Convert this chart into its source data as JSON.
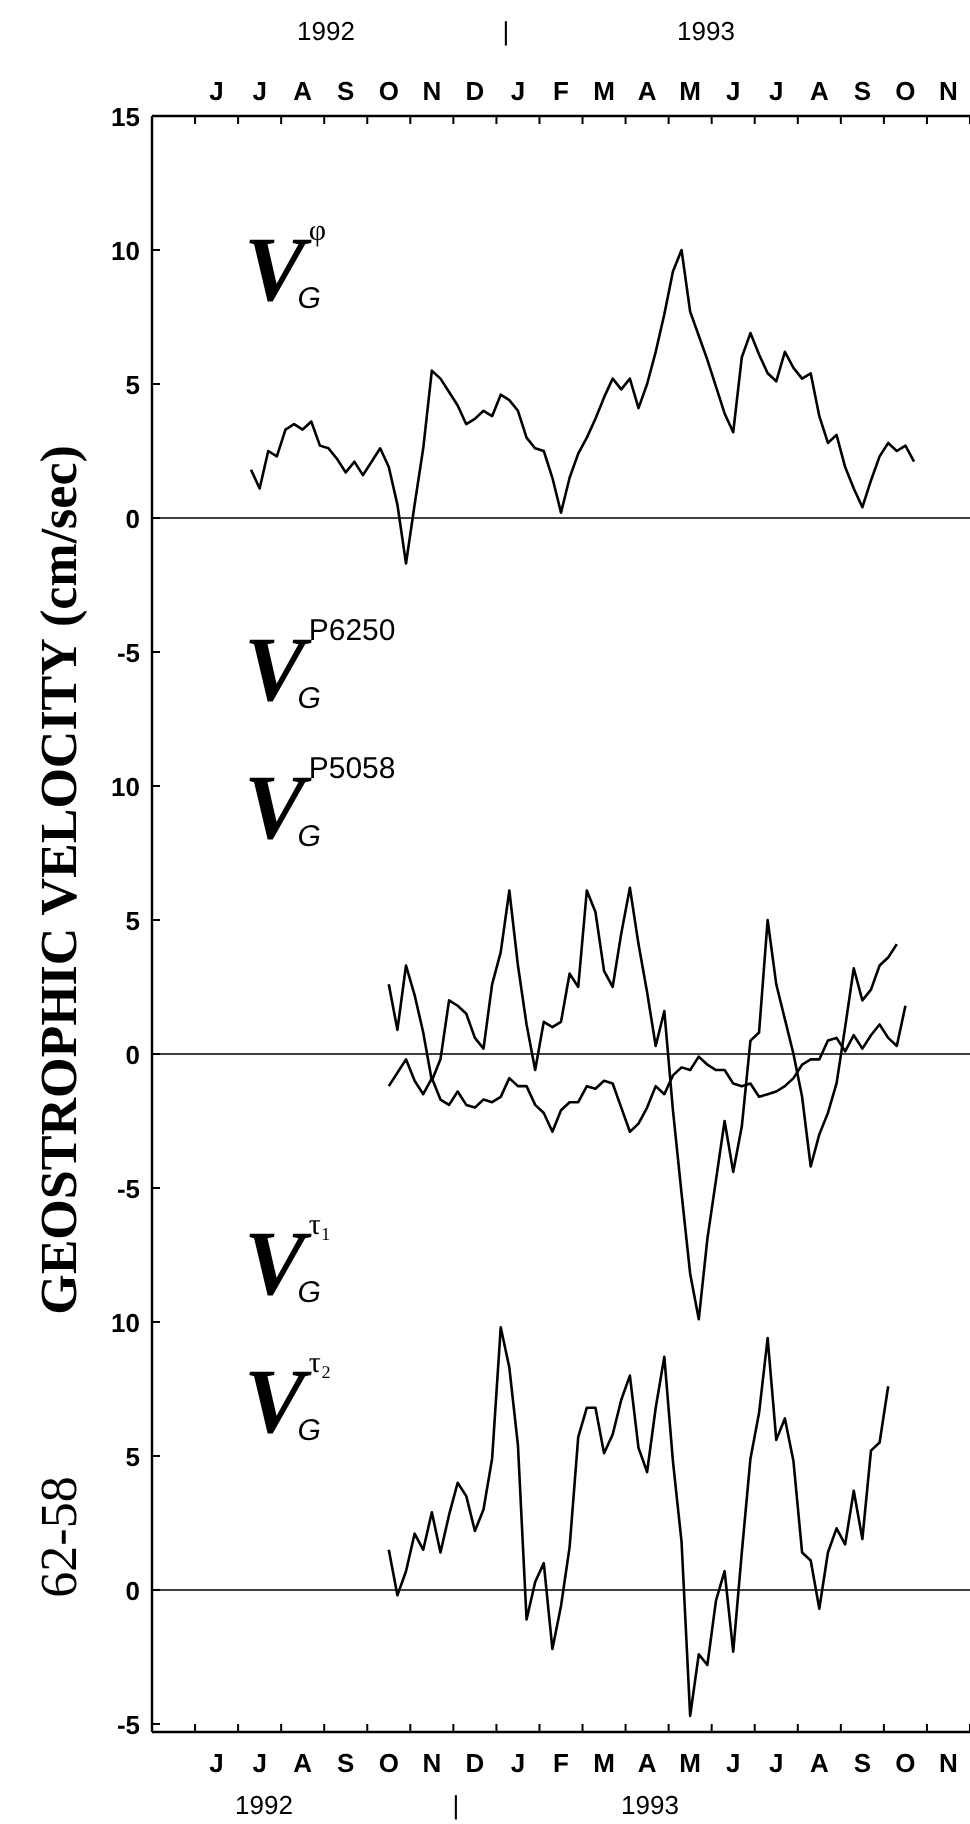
{
  "chart_data": [
    {
      "type": "line",
      "ylim": [
        -5,
        15
      ],
      "yticks": [
        15,
        10,
        5,
        0,
        -5
      ],
      "grid": false,
      "marker": "none",
      "line_style": "solid",
      "categories": [
        null,
        null,
        null,
        null,
        null,
        null,
        null,
        "J",
        null,
        null,
        null,
        null,
        "J",
        null,
        null,
        null,
        null,
        "A",
        null,
        null,
        null,
        null,
        "S",
        null,
        null,
        null,
        null,
        "O",
        null,
        null,
        null,
        null,
        "N",
        null,
        null,
        null,
        null,
        "D",
        null,
        null,
        null,
        null,
        "J",
        null,
        null,
        null,
        null,
        "F",
        null,
        null,
        null,
        null,
        "M",
        null,
        null,
        null,
        null,
        "A",
        null,
        null,
        null,
        null,
        "M",
        null,
        null,
        null,
        null,
        "J",
        null,
        null,
        null,
        null,
        "J",
        null,
        null,
        null,
        null,
        "A",
        null,
        null,
        null,
        null,
        "S",
        null,
        null,
        null,
        null,
        "O",
        null,
        null,
        null,
        null,
        "N",
        null,
        null
      ],
      "annotations": [
        "1992",
        "|",
        "1993",
        "V$_{G}$$^{φ}$"
      ],
      "ref_lines": [
        {
          "axis": "y",
          "value": 0,
          "color": "#000000"
        }
      ],
      "series": [
        {
          "color": "#000000",
          "values": [
            null,
            null,
            null,
            null,
            null,
            null,
            null,
            null,
            null,
            null,
            null,
            1.8,
            1.1,
            2.5,
            2.3,
            3.3,
            3.5,
            3.3,
            3.6,
            2.7,
            2.6,
            2.2,
            1.7,
            2.1,
            1.6,
            2.1,
            2.6,
            1.9,
            0.5,
            -1.7,
            0.5,
            2.6,
            5.5,
            5.2,
            4.7,
            4.2,
            3.5,
            3.7,
            4.0,
            3.8,
            4.6,
            4.4,
            4.0,
            3.0,
            2.6,
            2.5,
            1.5,
            0.2,
            1.5,
            2.4,
            3.0,
            3.7,
            4.5,
            5.2,
            4.8,
            5.2,
            4.1,
            5.0,
            6.2,
            7.6,
            9.2,
            10.0,
            7.7,
            6.8,
            5.9,
            4.9,
            3.9,
            3.2,
            6.0,
            6.9,
            6.1,
            5.4,
            5.1,
            6.2,
            5.6,
            5.2,
            5.4,
            3.8,
            2.8,
            3.1,
            1.9,
            1.1,
            0.4,
            1.4,
            2.3,
            2.8,
            2.5,
            2.7,
            2.1,
            null,
            null,
            null,
            null,
            null,
            null
          ]
        }
      ]
    },
    {
      "type": "line",
      "ylim": [
        -10,
        15
      ],
      "yticks": [
        10,
        5,
        0,
        -5
      ],
      "tick_labels": "y",
      "grid": false,
      "marker": "none",
      "line_style": "solid",
      "ylabel": "GEOSTROPHIC VELOCITY (cm/sec)",
      "categories": [
        null,
        null,
        null,
        null,
        null,
        null,
        null,
        null,
        null,
        null,
        null,
        null,
        null,
        null,
        null,
        null,
        null,
        null,
        null,
        null,
        null,
        null,
        null,
        null,
        null,
        null,
        null,
        null,
        null,
        null,
        null,
        null,
        null,
        null,
        null,
        null,
        null,
        null,
        null,
        null,
        null,
        null,
        null,
        null,
        null,
        null,
        null,
        null,
        null,
        null,
        null,
        null,
        null,
        null,
        null,
        null,
        null,
        null,
        null,
        null,
        null,
        null,
        null,
        null,
        null,
        null,
        null,
        null,
        null,
        null,
        null,
        null,
        null,
        null,
        null,
        null,
        null,
        null,
        null,
        null,
        null,
        null,
        null,
        null,
        null,
        null,
        null,
        null,
        null,
        null,
        null,
        null,
        null,
        null,
        null
      ],
      "annotations": [
        "V$_{G}$$^{P6250}$",
        "V$_{G}$$^{P5058}$"
      ],
      "ref_lines": [
        {
          "axis": "y",
          "value": 0,
          "color": "#000000"
        }
      ],
      "series": [
        {
          "color": "#000000",
          "values": [
            null,
            null,
            null,
            null,
            null,
            null,
            null,
            null,
            null,
            null,
            null,
            null,
            null,
            null,
            null,
            null,
            null,
            null,
            null,
            null,
            null,
            null,
            null,
            null,
            null,
            null,
            null,
            2.6,
            0.9,
            3.3,
            2.2,
            0.8,
            -1.0,
            -0.2,
            2.0,
            1.8,
            1.5,
            0.6,
            0.2,
            2.6,
            3.8,
            6.1,
            3.3,
            1.1,
            -0.6,
            1.2,
            1.0,
            1.2,
            3.0,
            2.5,
            6.1,
            5.3,
            3.1,
            2.5,
            4.5,
            6.2,
            4.1,
            2.3,
            0.3,
            1.6,
            -2.1,
            -5.2,
            -8.2,
            -9.9,
            -6.9,
            -4.7,
            -2.5,
            -4.4,
            -2.7,
            0.5,
            0.8,
            5.0,
            2.6,
            1.3,
            0.0,
            -1.6,
            -4.2,
            -3.0,
            -2.2,
            -1.1,
            1.0,
            3.2,
            2.0,
            2.4,
            3.3,
            3.6,
            4.1,
            null,
            null,
            null,
            null,
            null,
            null,
            null,
            null
          ]
        },
        {
          "color": "#000000",
          "values": [
            null,
            null,
            null,
            null,
            null,
            null,
            null,
            null,
            null,
            null,
            null,
            null,
            null,
            null,
            null,
            null,
            null,
            null,
            null,
            null,
            null,
            null,
            null,
            null,
            null,
            null,
            null,
            -1.2,
            -0.7,
            -0.2,
            -1.0,
            -1.5,
            -0.9,
            -1.7,
            -1.9,
            -1.4,
            -1.9,
            -2.0,
            -1.7,
            -1.8,
            -1.6,
            -0.9,
            -1.2,
            -1.2,
            -1.9,
            -2.2,
            -2.9,
            -2.1,
            -1.8,
            -1.8,
            -1.2,
            -1.3,
            -1.0,
            -1.1,
            -2.0,
            -2.9,
            -2.6,
            -2.0,
            -1.2,
            -1.5,
            -0.8,
            -0.5,
            -0.6,
            -0.1,
            -0.4,
            -0.6,
            -0.6,
            -1.1,
            -1.2,
            -1.1,
            -1.6,
            -1.5,
            -1.4,
            -1.2,
            -0.9,
            -0.4,
            -0.2,
            -0.2,
            0.5,
            0.6,
            0.1,
            0.7,
            0.2,
            0.7,
            1.1,
            0.6,
            0.3,
            1.8,
            null,
            null,
            null,
            null,
            null,
            null,
            null
          ]
        }
      ]
    },
    {
      "type": "line",
      "ylim": [
        -5.3,
        10
      ],
      "yticks": [
        10,
        5,
        0,
        -5
      ],
      "grid": false,
      "marker": "none",
      "line_style": "solid",
      "ylabel": "62-58",
      "categories": [
        null,
        null,
        null,
        null,
        null,
        null,
        null,
        "J",
        null,
        null,
        null,
        null,
        "J",
        null,
        null,
        null,
        null,
        "A",
        null,
        null,
        null,
        null,
        "S",
        null,
        null,
        null,
        null,
        "O",
        null,
        null,
        null,
        null,
        "N",
        null,
        null,
        null,
        null,
        "D",
        null,
        null,
        null,
        null,
        "J",
        null,
        null,
        null,
        null,
        "F",
        null,
        null,
        null,
        null,
        "M",
        null,
        null,
        null,
        null,
        "A",
        null,
        null,
        null,
        null,
        "M",
        null,
        null,
        null,
        null,
        "J",
        null,
        null,
        null,
        null,
        "J",
        null,
        null,
        null,
        null,
        "A",
        null,
        null,
        null,
        null,
        "S",
        null,
        null,
        null,
        null,
        "O",
        null,
        null,
        null,
        null,
        "N",
        null,
        null
      ],
      "annotations": [
        "1992",
        "|",
        "1993",
        "V$_{G}$$^{τ₁}$",
        "V$_{G}$$^{τ₂}$"
      ],
      "ref_lines": [
        {
          "axis": "y",
          "value": 0,
          "color": "#000000"
        }
      ],
      "series": [
        {
          "color": "#000000",
          "values": [
            null,
            null,
            null,
            null,
            null,
            null,
            null,
            null,
            null,
            null,
            null,
            null,
            null,
            null,
            null,
            null,
            null,
            null,
            null,
            null,
            null,
            null,
            null,
            null,
            null,
            null,
            null,
            1.5,
            -0.2,
            0.7,
            2.1,
            1.5,
            2.9,
            1.4,
            2.8,
            4.0,
            3.5,
            2.2,
            3.0,
            4.9,
            9.8,
            8.3,
            5.4,
            -1.1,
            0.3,
            1.0,
            -2.2,
            -0.6,
            1.6,
            5.7,
            6.8,
            6.8,
            5.1,
            5.8,
            7.1,
            8.0,
            5.3,
            4.4,
            6.8,
            8.7,
            4.8,
            1.8,
            -4.7,
            -2.4,
            -2.8,
            -0.4,
            0.7,
            -2.3,
            1.4,
            4.9,
            6.6,
            9.4,
            5.6,
            6.4,
            4.8,
            1.4,
            1.1,
            -0.7,
            1.4,
            2.3,
            1.7,
            3.7,
            1.9,
            5.2,
            5.5,
            7.6,
            null,
            null,
            null,
            null,
            null,
            null,
            null,
            null,
            null
          ]
        }
      ]
    }
  ]
}
